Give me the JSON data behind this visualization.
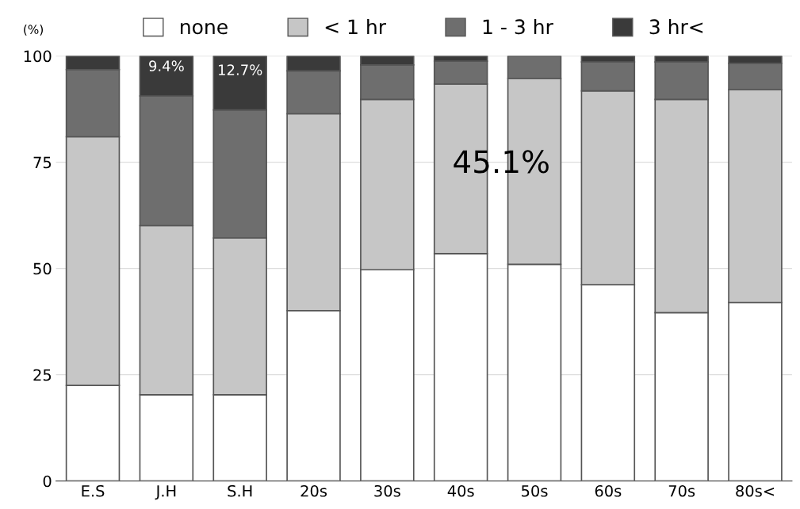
{
  "chart_data": {
    "type": "bar",
    "stacked": true,
    "ylabel": "(%)",
    "categories": [
      "E.S",
      "J.H",
      "S.H",
      "20s",
      "30s",
      "40s",
      "50s",
      "60s",
      "70s",
      "80s<"
    ],
    "series": [
      {
        "name": "none",
        "color": "#ffffff",
        "values": [
          22.5,
          20.3,
          20.3,
          40.1,
          49.7,
          53.5,
          51.0,
          46.2,
          39.6,
          42.0
        ]
      },
      {
        "name": "< 1 hr",
        "color": "#c6c6c6",
        "values": [
          58.5,
          39.8,
          36.9,
          46.3,
          40.1,
          39.9,
          43.7,
          45.6,
          50.2,
          50.1
        ]
      },
      {
        "name": "1 - 3 hr",
        "color": "#6e6e6e",
        "values": [
          15.8,
          30.5,
          30.1,
          10.1,
          8.1,
          5.4,
          5.3,
          6.8,
          8.8,
          6.2
        ]
      },
      {
        "name": "3 hr<",
        "color": "#3a3a3a",
        "values": [
          3.2,
          9.4,
          12.7,
          3.5,
          2.1,
          1.2,
          null,
          1.4,
          1.4,
          1.7
        ],
        "value_labels": [
          null,
          "9.4%",
          "12.7%",
          null,
          null,
          null,
          null,
          null,
          null,
          null
        ]
      }
    ],
    "ylim": [
      0,
      100
    ],
    "yticks": [
      0,
      25,
      50,
      75,
      100
    ],
    "grid": "y",
    "legend": "top",
    "annotations": [
      "45.1%"
    ]
  }
}
